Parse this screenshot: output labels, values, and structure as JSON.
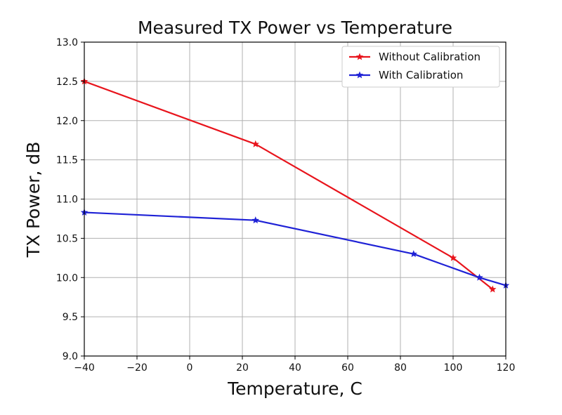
{
  "chart_data": {
    "type": "line",
    "title": "Measured TX Power vs Temperature",
    "xlabel": "Temperature, C",
    "ylabel": "TX Power, dB",
    "xlim": [
      -40,
      120
    ],
    "ylim": [
      9.0,
      13.0
    ],
    "xticks": [
      "−40",
      "−20",
      "0",
      "20",
      "40",
      "60",
      "80",
      "100",
      "120"
    ],
    "yticks": [
      "9.0",
      "9.5",
      "10.0",
      "10.5",
      "11.0",
      "11.5",
      "12.0",
      "12.5",
      "13.0"
    ],
    "grid": true,
    "legend_position": "top-right",
    "series": [
      {
        "name": "Without Calibration",
        "color": "#e8141c",
        "marker": "star",
        "x": [
          -40,
          25,
          100,
          115
        ],
        "y": [
          12.5,
          11.7,
          10.25,
          9.85
        ]
      },
      {
        "name": "With Calibration",
        "color": "#1f22d6",
        "marker": "star",
        "x": [
          -40,
          25,
          85,
          110,
          120
        ],
        "y": [
          10.83,
          10.73,
          10.3,
          10.0,
          9.9
        ]
      }
    ]
  }
}
